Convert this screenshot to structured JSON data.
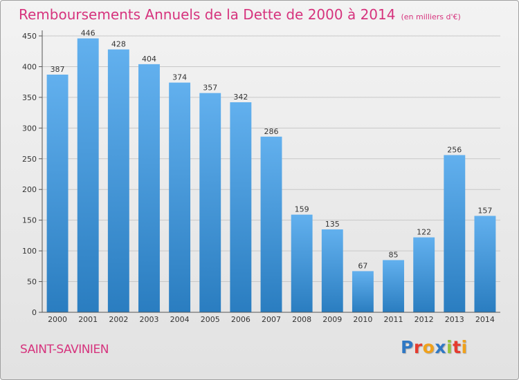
{
  "title": "Remboursements Annuels de la Dette de 2000 à 2014",
  "subtitle": "(en milliers d'€)",
  "commune": "SAINT-SAVINIEN",
  "logo": {
    "letters": [
      "P",
      "r",
      "o",
      "x",
      "i",
      "t",
      "i"
    ]
  },
  "colors": {
    "accent": "#d6337d",
    "bar_top": "#62b0ee",
    "bar_bottom": "#2a7dc0"
  },
  "chart_data": {
    "type": "bar",
    "title": "Remboursements Annuels de la Dette de 2000 à 2014",
    "subtitle": "(en milliers d'€)",
    "xlabel": "",
    "ylabel": "",
    "categories": [
      "2000",
      "2001",
      "2002",
      "2003",
      "2004",
      "2005",
      "2006",
      "2007",
      "2008",
      "2009",
      "2010",
      "2011",
      "2012",
      "2013",
      "2014"
    ],
    "values": [
      387,
      446,
      428,
      404,
      374,
      357,
      342,
      286,
      159,
      135,
      67,
      85,
      122,
      256,
      157
    ],
    "ylim": [
      0,
      450
    ],
    "yticks": [
      0,
      50,
      100,
      150,
      200,
      250,
      300,
      350,
      400,
      450
    ],
    "grid": true
  }
}
